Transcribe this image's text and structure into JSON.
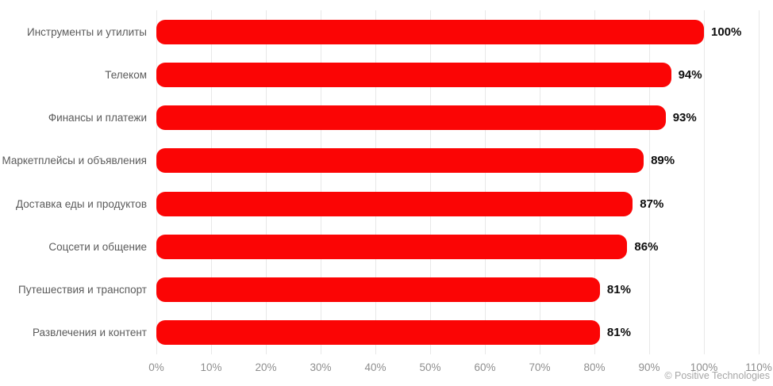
{
  "chart_data": {
    "type": "bar",
    "orientation": "horizontal",
    "title": "",
    "xlabel": "",
    "ylabel": "",
    "categories": [
      "Инструменты и утилиты",
      "Телеком",
      "Финансы и платежи",
      "Маркетплейсы и объявления",
      "Доставка еды и продуктов",
      "Соцсети и общение",
      "Путешествия и транспорт",
      "Развлечения и контент"
    ],
    "values": [
      100,
      94,
      93,
      89,
      87,
      86,
      81,
      81
    ],
    "value_labels": [
      "100%",
      "94%",
      "93%",
      "89%",
      "87%",
      "86%",
      "81%",
      "81%"
    ],
    "xlim": [
      0,
      110
    ],
    "x_ticks": [
      0,
      10,
      20,
      30,
      40,
      50,
      60,
      70,
      80,
      90,
      100,
      110
    ],
    "x_tick_labels": [
      "0%",
      "10%",
      "20%",
      "30%",
      "40%",
      "50%",
      "60%",
      "70%",
      "80%",
      "90%",
      "100%",
      "110%"
    ],
    "grid": "vertical-gridlines",
    "legend": "none"
  },
  "colors": {
    "bar": "#fb0505",
    "gridline": "#e8e8e8",
    "category_label": "#5b5b5b",
    "value_label": "#0e0e0e",
    "tick_label": "#8e8e8e",
    "credit": "#a7a7a7"
  },
  "footer": {
    "credit": "© Positive Technologies"
  }
}
